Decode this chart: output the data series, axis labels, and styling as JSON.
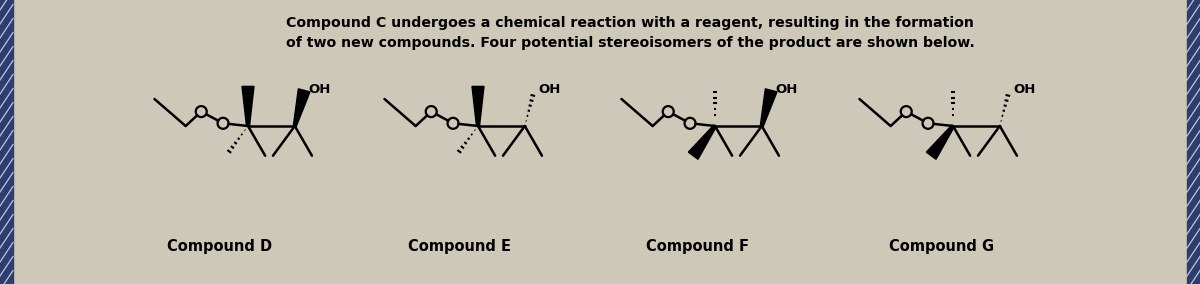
{
  "bg_color": "#cdc8b8",
  "text_color": "#000000",
  "title_line1": "Compound C undergoes a chemical reaction with a reagent, resulting in the formation",
  "title_line2": "of two new compounds. Four potential stereoisomers of the product are shown below.",
  "compound_labels": [
    "Compound D",
    "Compound E",
    "Compound F",
    "Compound G"
  ],
  "figsize": [
    12.0,
    2.84
  ],
  "dpi": 100,
  "border_color": "#2a3a6a",
  "border_width": 0.11
}
